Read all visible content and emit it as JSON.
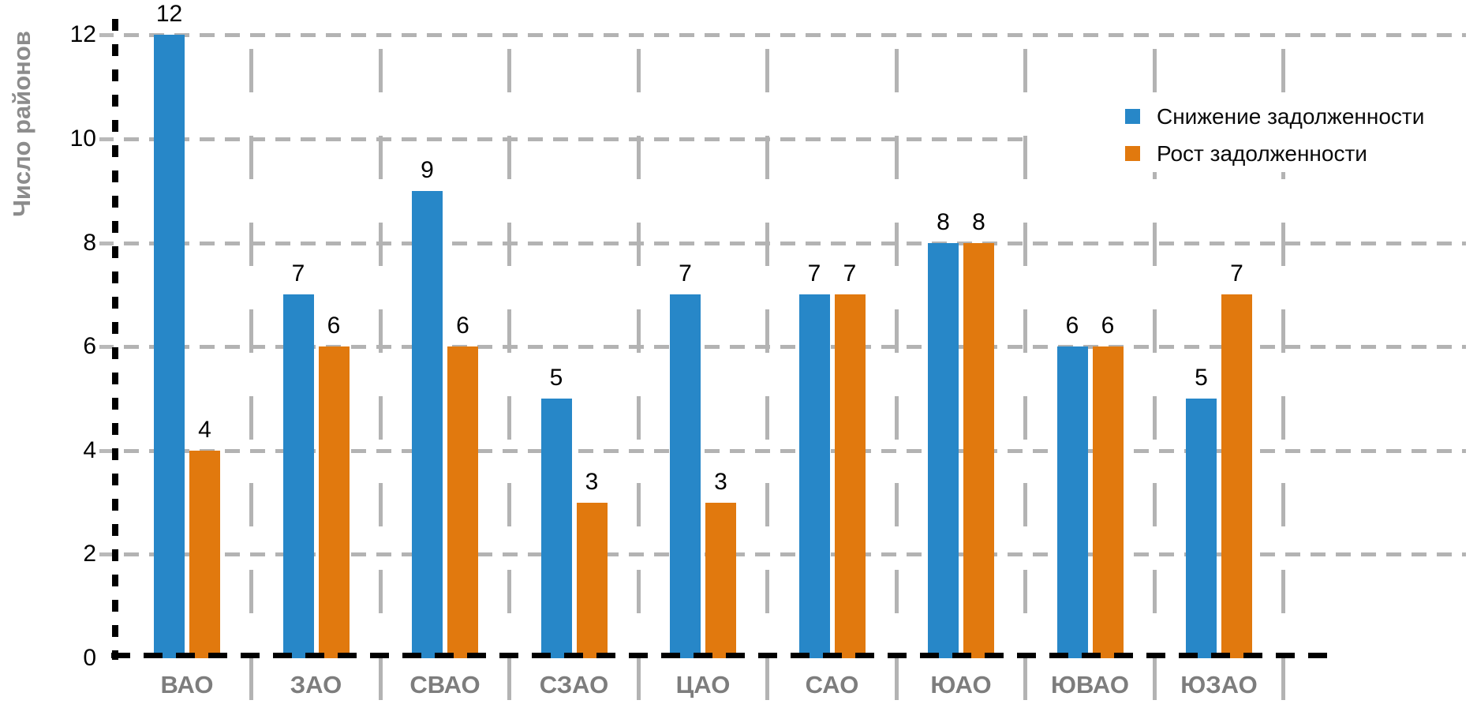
{
  "chart_data": {
    "type": "bar",
    "ylabel": "Число районов",
    "categories": [
      "ВАО",
      "ЗАО",
      "СВАО",
      "СЗАО",
      "ЦАО",
      "САО",
      "ЮАО",
      "ЮВАО",
      "ЮЗАО"
    ],
    "series": [
      {
        "name": "Снижение задолженности",
        "color": "#2787C8",
        "values": [
          12,
          7,
          9,
          5,
          7,
          7,
          8,
          6,
          5
        ]
      },
      {
        "name": "Рост задолженности",
        "color": "#E1790E",
        "values": [
          4,
          6,
          6,
          3,
          3,
          7,
          8,
          6,
          7
        ]
      }
    ],
    "yticks": [
      0,
      2,
      4,
      6,
      8,
      10,
      12
    ],
    "ylim": [
      0,
      12
    ],
    "bar_value_labels_shown": true,
    "grid": {
      "horizontal": "dashed",
      "vertical_category_separators": "dashed"
    },
    "legend_position": "top-right"
  },
  "colors": {
    "series_decrease": "#2787C8",
    "series_increase": "#E1790E",
    "gridline": "#B3B3B3",
    "axis": "#000000",
    "category_label": "#7D7D7D",
    "axis_title": "#8C8C8C",
    "value_label": "#000000",
    "background": "#FFFFFF"
  }
}
